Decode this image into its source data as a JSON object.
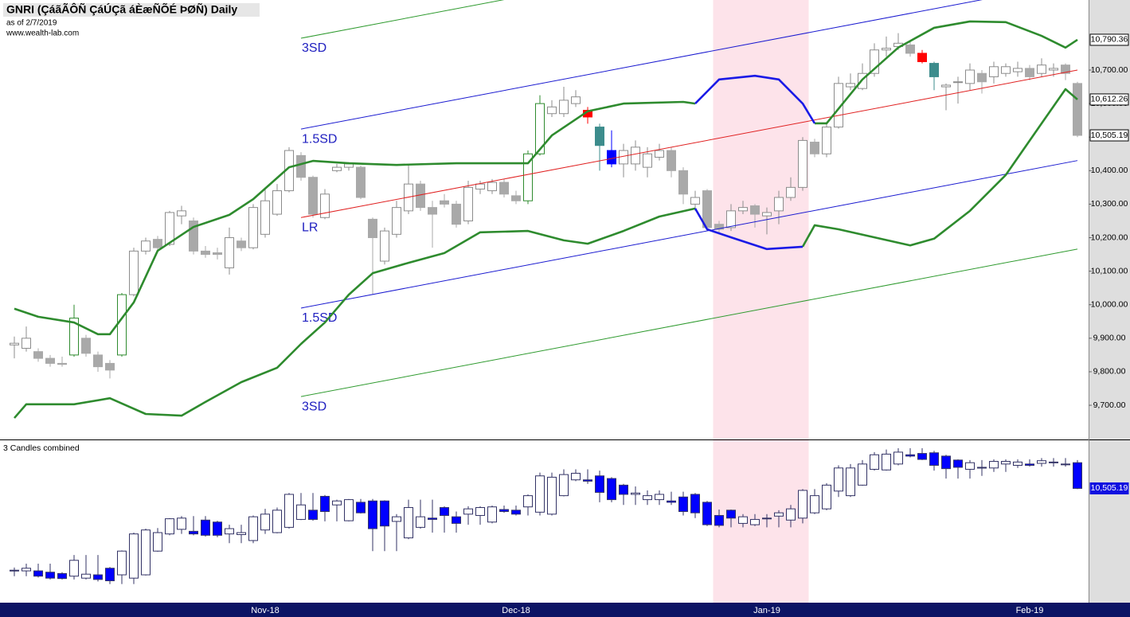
{
  "chart_data": [
    {
      "type": "candlestick",
      "title": "GNRI (ÇáãÃÔÑ ÇáÚÇã áÈæÑÕÉ ÞØÑ) Daily",
      "subtitle": "as of 2/7/2019",
      "source": "www.wealth-lab.com",
      "categories": [
        null,
        null,
        null,
        null,
        null,
        null,
        null,
        null,
        null,
        null,
        null,
        null,
        null,
        null,
        null,
        null,
        null,
        null,
        null,
        null,
        null,
        "Nov-18",
        null,
        null,
        null,
        null,
        null,
        null,
        null,
        null,
        null,
        null,
        null,
        null,
        null,
        null,
        null,
        null,
        null,
        null,
        null,
        null,
        "Dec-18",
        null,
        null,
        null,
        null,
        null,
        null,
        null,
        null,
        null,
        null,
        null,
        null,
        null,
        null,
        null,
        null,
        null,
        null,
        null,
        null,
        "Jan-19",
        null,
        null,
        null,
        null,
        null,
        null,
        null,
        null,
        null,
        null,
        null,
        null,
        null,
        null,
        null,
        null,
        null,
        null,
        null,
        null,
        null,
        "Feb-19",
        null,
        null,
        null,
        null
      ],
      "open": [
        9880,
        9870,
        9860,
        9840,
        9825,
        9850,
        9900,
        9850,
        9825,
        9850,
        10030,
        10160,
        10195,
        10180,
        10265,
        10250,
        10160,
        10155,
        10110,
        10190,
        10170,
        10210,
        10270,
        10340,
        10445,
        10380,
        10260,
        10400,
        10410,
        10410,
        10255,
        10130,
        10210,
        10280,
        10360,
        10290,
        10310,
        10300,
        10250,
        10345,
        10340,
        10365,
        10325,
        10310,
        10450,
        10570,
        10570,
        10600,
        10580,
        10530,
        10460,
        10420,
        10420,
        10410,
        10440,
        10460,
        10400,
        10300,
        10340,
        10240,
        10230,
        10280,
        10295,
        10265,
        10280,
        10320,
        10350,
        10485,
        10450,
        10530,
        10650,
        10645,
        10690,
        10760,
        10770,
        10775,
        10750,
        10720,
        10650,
        10665,
        10660,
        10690,
        10680,
        10690,
        10695,
        10705,
        10690,
        10700,
        10715,
        10660
      ],
      "high": [
        9905,
        9935,
        9870,
        9850,
        9845,
        10000,
        9910,
        9860,
        9835,
        10035,
        10170,
        10200,
        10205,
        10280,
        10295,
        10260,
        10175,
        10170,
        10230,
        10200,
        10300,
        10350,
        10360,
        10470,
        10455,
        10385,
        10345,
        10420,
        10425,
        10415,
        10260,
        10230,
        10310,
        10420,
        10370,
        10310,
        10330,
        10310,
        10370,
        10370,
        10375,
        10375,
        10340,
        10460,
        10625,
        10610,
        10650,
        10640,
        10590,
        10540,
        10520,
        10480,
        10490,
        10470,
        10480,
        10470,
        10410,
        10340,
        10345,
        10250,
        10300,
        10310,
        10300,
        10290,
        10340,
        10380,
        10500,
        10495,
        10545,
        10680,
        10690,
        10720,
        10780,
        10800,
        10810,
        10790,
        10760,
        10725,
        10660,
        10680,
        10720,
        10700,
        10725,
        10720,
        10725,
        10715,
        10735,
        10720,
        10720,
        10665
      ],
      "low": [
        9840,
        9860,
        9830,
        9815,
        9815,
        9845,
        9845,
        9800,
        9780,
        9845,
        10025,
        10150,
        10160,
        10175,
        10240,
        10150,
        10140,
        10135,
        10090,
        10160,
        10165,
        10200,
        10265,
        10335,
        10370,
        10260,
        10255,
        10395,
        10400,
        10315,
        10030,
        10120,
        10200,
        10270,
        10280,
        10170,
        10290,
        10230,
        10240,
        10330,
        10330,
        10320,
        10300,
        10300,
        10445,
        10560,
        10560,
        10590,
        10540,
        10400,
        10410,
        10380,
        10400,
        10380,
        10430,
        10380,
        10300,
        10280,
        10220,
        10210,
        10220,
        10270,
        10230,
        10210,
        10240,
        10310,
        10340,
        10440,
        10440,
        10525,
        10640,
        10640,
        10680,
        10740,
        10760,
        10740,
        10720,
        10640,
        10580,
        10600,
        10640,
        10630,
        10660,
        10680,
        10680,
        10670,
        10680,
        10680,
        10670,
        10500
      ],
      "close": [
        9885,
        9900,
        9840,
        9825,
        9822,
        9960,
        9855,
        9815,
        9805,
        10030,
        10160,
        10190,
        10170,
        10275,
        10280,
        10160,
        10150,
        10150,
        10200,
        10170,
        10290,
        10310,
        10340,
        10460,
        10380,
        10270,
        10330,
        10410,
        10420,
        10320,
        10200,
        10220,
        10290,
        10360,
        10290,
        10270,
        10300,
        10240,
        10350,
        10360,
        10365,
        10330,
        10310,
        10450,
        10600,
        10590,
        10610,
        10620,
        10560,
        10475,
        10420,
        10460,
        10470,
        10450,
        10460,
        10400,
        10330,
        10320,
        10230,
        10225,
        10280,
        10290,
        10270,
        10275,
        10320,
        10350,
        10490,
        10450,
        10530,
        10660,
        10660,
        10690,
        10760,
        10765,
        10780,
        10750,
        10725,
        10680,
        10655,
        10665,
        10700,
        10665,
        10710,
        10710,
        10705,
        10680,
        10715,
        10705,
        10690,
        10505.19
      ],
      "value_labels": [
        null,
        null,
        null,
        null,
        null,
        null,
        null,
        null,
        null,
        null,
        null,
        null,
        null,
        null,
        null,
        null,
        null,
        null,
        null,
        null,
        null,
        null,
        null,
        null,
        null,
        null,
        null,
        null,
        null,
        null,
        null,
        null,
        null,
        null,
        null,
        null,
        null,
        null,
        null,
        null,
        null,
        null,
        null,
        null,
        null,
        null,
        null,
        null,
        null,
        null,
        null,
        null,
        null,
        null,
        null,
        null,
        null,
        null,
        null,
        null,
        null,
        null,
        null,
        null,
        null,
        null,
        null,
        null,
        null,
        null,
        null,
        null,
        null,
        null,
        null,
        null,
        null,
        null,
        null,
        null,
        null,
        null,
        null,
        null,
        null,
        null,
        null,
        null,
        null,
        "10,505.19"
      ],
      "color_up": "#ffffff",
      "color_down": "#a9a9a9",
      "color_outline": "#8c8c8c",
      "highlights": [
        {
          "index": 5,
          "color": "#2e8b2e"
        },
        {
          "index": 9,
          "color": "#2e8b2e"
        },
        {
          "index": 43,
          "color": "#2e8b2e"
        },
        {
          "index": 44,
          "color": "#2e8b2e"
        },
        {
          "index": 48,
          "color": "#ff0000"
        },
        {
          "index": 49,
          "color": "#3c8c8c"
        },
        {
          "index": 50,
          "color": "#0000ff"
        },
        {
          "index": 76,
          "color": "#ff0000"
        },
        {
          "index": 77,
          "color": "#3c8c8c"
        }
      ],
      "shaded_bars": [
        59,
        66
      ],
      "shaded_color": "#fde3ea",
      "bands": [
        {
          "color": "#2e8b2e",
          "x": [
            0,
            2,
            5,
            7,
            8,
            10,
            12,
            15,
            18,
            20,
            23,
            25,
            28,
            32,
            37,
            43,
            45,
            48,
            51,
            56,
            57,
            62,
            67,
            68,
            71,
            74,
            77,
            80,
            83,
            86,
            88,
            89
          ],
          "values": [
            9988,
            9964,
            9947,
            9912,
            9912,
            10007,
            10161,
            10232,
            10268,
            10315,
            10410,
            10429,
            10422,
            10417,
            10422,
            10422,
            10505,
            10577,
            10600,
            10605,
            10600,
            null,
            10541,
            10541,
            10672,
            10767,
            10826,
            10845,
            10843,
            10802,
            10767,
            10790.36
          ],
          "value_labels": [
            null,
            null,
            null,
            null,
            null,
            null,
            null,
            null,
            null,
            null,
            null,
            null,
            null,
            null,
            null,
            null,
            null,
            null,
            null,
            null,
            null,
            null,
            null,
            null,
            null,
            null,
            null,
            null,
            null,
            null,
            null,
            "10,790.36"
          ]
        },
        {
          "color": "#2e8b2e",
          "x": [
            0,
            1,
            5,
            8,
            11,
            14,
            16,
            19,
            22,
            24,
            26,
            28,
            30,
            33,
            36,
            39,
            43,
            46,
            48,
            51,
            54,
            57,
            62,
            66,
            67,
            69,
            72,
            75,
            77,
            80,
            83,
            86,
            88,
            89
          ],
          "values": [
            9662,
            9703,
            9703,
            9721,
            9674,
            9669,
            9710,
            9769,
            9812,
            9883,
            9947,
            10030,
            10094,
            10125,
            10154,
            10216,
            10220,
            10192,
            10182,
            10220,
            10263,
            10287,
            null,
            10173,
            10237,
            10225,
            10201,
            10177,
            10197,
            10280,
            10387,
            10541,
            10643,
            10612.26
          ],
          "value_labels": [
            null,
            null,
            null,
            null,
            null,
            null,
            null,
            null,
            null,
            null,
            null,
            null,
            null,
            null,
            null,
            null,
            null,
            null,
            null,
            null,
            null,
            null,
            null,
            null,
            null,
            null,
            null,
            null,
            null,
            null,
            null,
            null,
            null,
            "10,612.26"
          ]
        },
        {
          "color": "#1a1ae6",
          "x": [
            57,
            59,
            62,
            64,
            66,
            67
          ],
          "values": [
            10600,
            10672,
            10683,
            10672,
            10600,
            10541
          ]
        },
        {
          "color": "#1a1ae6",
          "x": [
            57,
            58,
            60,
            63,
            66
          ],
          "values": [
            10287,
            10225,
            10201,
            10166,
            10173
          ]
        }
      ],
      "channel_lines": [
        {
          "label": "3SD",
          "color": "#2e9a2e",
          "x": [
            24,
            89
          ],
          "values": [
            10795,
            11235
          ]
        },
        {
          "label": "1.5SD",
          "color": "#1a1ad0",
          "x": [
            24,
            89
          ],
          "values": [
            10524,
            10964
          ]
        },
        {
          "label": "LR",
          "color": "#e02020",
          "x": [
            24,
            89
          ],
          "values": [
            10260,
            10700
          ]
        },
        {
          "label": "1.5SD",
          "color": "#1a1ad0",
          "x": [
            24,
            89
          ],
          "values": [
            9990,
            10430
          ]
        },
        {
          "label": "3SD",
          "color": "#2e9a2e",
          "x": [
            24,
            89
          ],
          "values": [
            9726,
            10166
          ]
        }
      ],
      "ylim": [
        9598,
        10909
      ],
      "yticks": [
        {
          "value": 9700,
          "label": "9,700.00"
        },
        {
          "value": 9800,
          "label": "9,800.00"
        },
        {
          "value": 9900,
          "label": "9,900.00"
        },
        {
          "value": 10000,
          "label": "10,000.00"
        },
        {
          "value": 10100,
          "label": "10,100.00"
        },
        {
          "value": 10200,
          "label": "10,200.00"
        },
        {
          "value": 10300,
          "label": "10,300.00"
        },
        {
          "value": 10400,
          "label": "10,400.00"
        },
        {
          "value": 10500,
          "label": "10,500.00"
        },
        {
          "value": 10600,
          "label": "10,600.00"
        },
        {
          "value": 10700,
          "label": "10,700.00"
        }
      ]
    },
    {
      "type": "candlestick-combined",
      "title": "3 Candles combined",
      "combine": 3,
      "color_up": "#ffffff",
      "color_down": "#0000ff",
      "color_outline": "#333366",
      "ylim": [
        9639,
        10858
      ]
    }
  ]
}
